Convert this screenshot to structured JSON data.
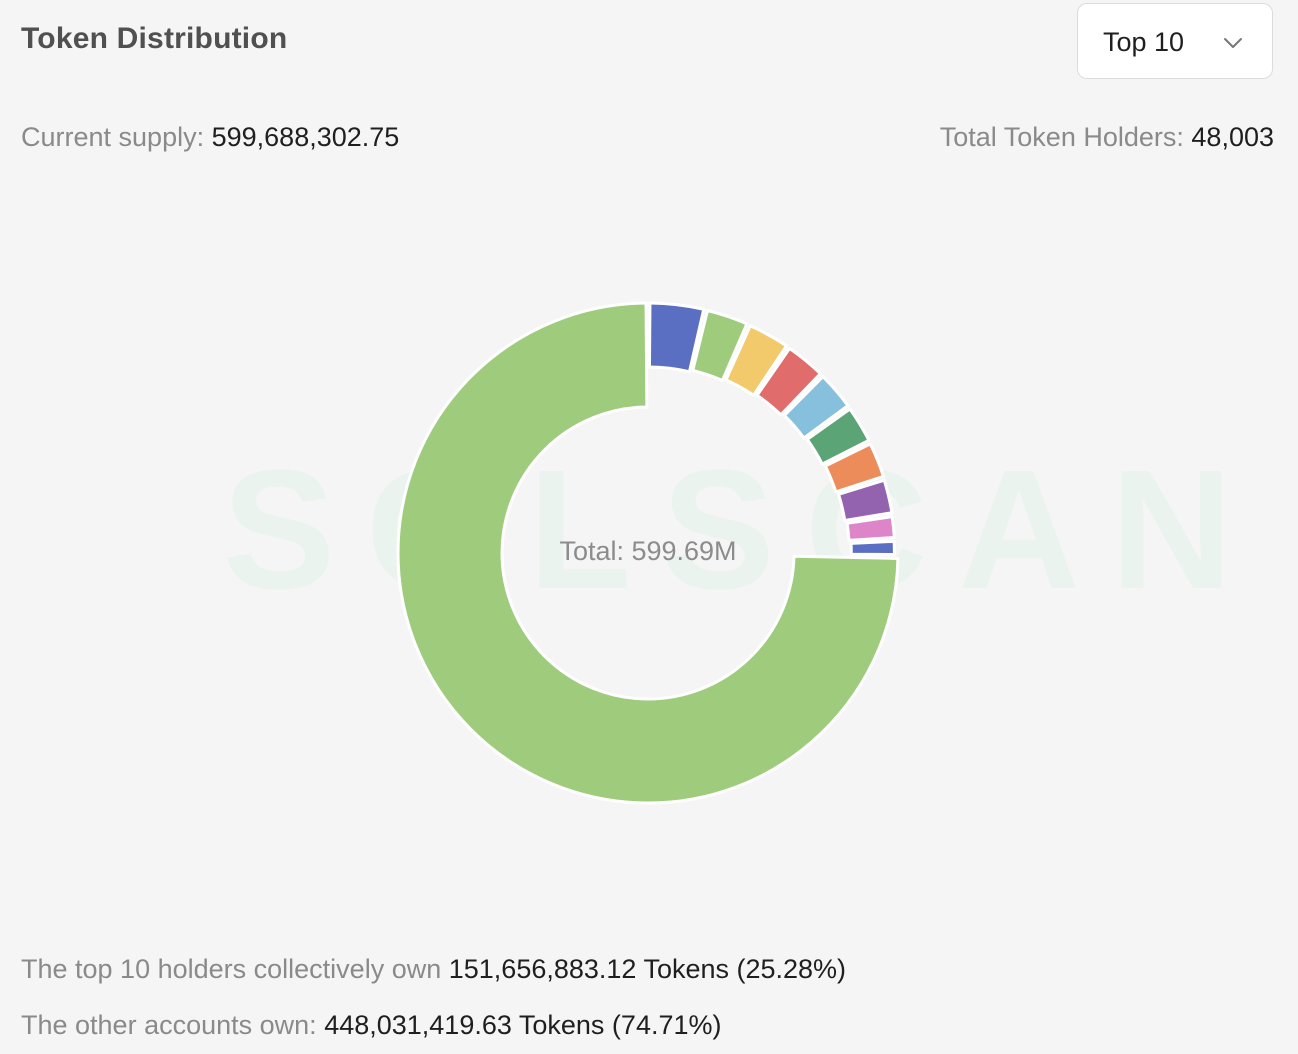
{
  "header": {
    "title": "Token Distribution",
    "dropdown": {
      "selected": "Top 10",
      "icon": "chevron-down-icon"
    }
  },
  "stats": {
    "current_supply_label": "Current supply:",
    "current_supply_value": "599,688,302.75",
    "holders_label": "Total Token Holders:",
    "holders_value": "48,003"
  },
  "chart": {
    "watermark": "SOLSCAN",
    "center_label": "Total: 599.69M"
  },
  "summary": {
    "top_label": "The top 10 holders collectively own",
    "top_value": "151,656,883.12 Tokens (25.28%)",
    "other_label": "The other accounts own:",
    "other_value": "448,031,419.63 Tokens (74.71%)"
  },
  "chart_data": {
    "type": "pie",
    "total": "599.69M",
    "slices": [
      {
        "color": "#5b6fc2",
        "pct": 3.7
      },
      {
        "color": "#9ecb7c",
        "pct": 2.9
      },
      {
        "color": "#f2ca6b",
        "pct": 2.9
      },
      {
        "color": "#e06c6b",
        "pct": 2.8
      },
      {
        "color": "#86c0dc",
        "pct": 2.7
      },
      {
        "color": "#5ba476",
        "pct": 2.6
      },
      {
        "color": "#ec8c5a",
        "pct": 2.5
      },
      {
        "color": "#9463b0",
        "pct": 2.4
      },
      {
        "color": "#de84c9",
        "pct": 1.6
      },
      {
        "color": "#5b6fc2",
        "pct": 1.1
      },
      {
        "color": "#9ecb7c",
        "pct": 74.71
      }
    ]
  }
}
